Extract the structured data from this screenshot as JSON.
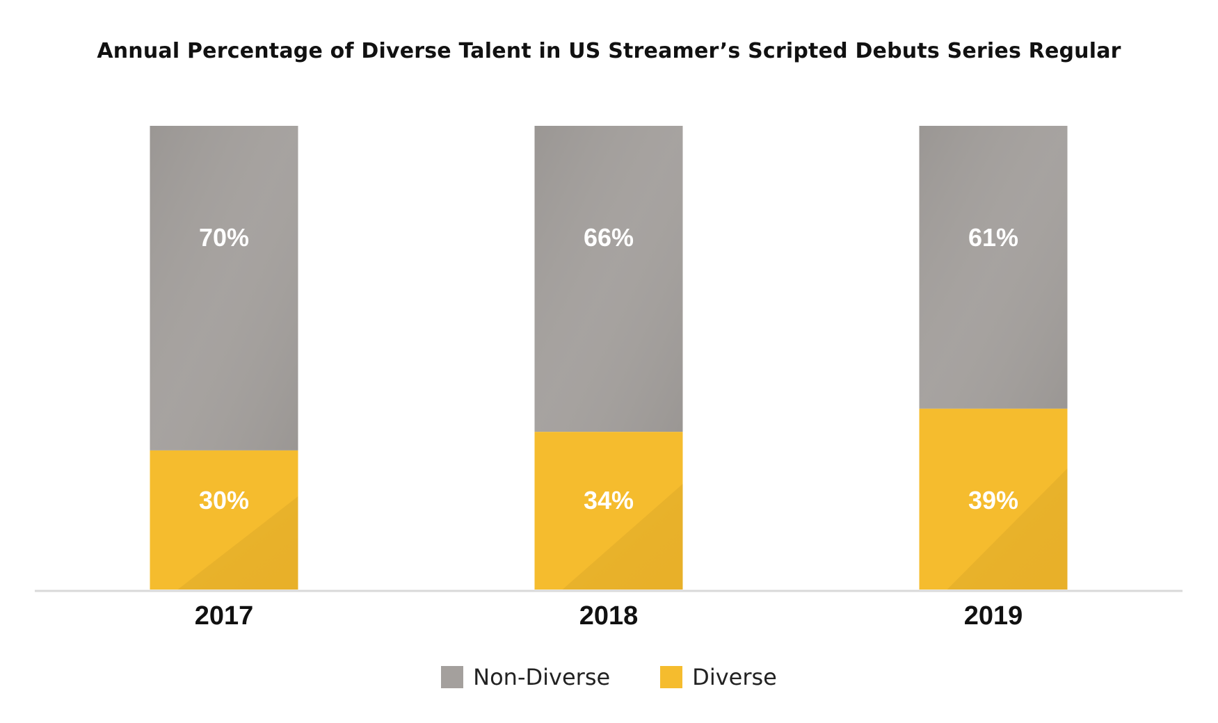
{
  "chart_data": {
    "type": "bar",
    "stacked": true,
    "percent_stacked": true,
    "title": "Annual Percentage of Diverse Talent in US Streamer’s Scripted Debuts Series Regular",
    "categories": [
      "2017",
      "2018",
      "2019"
    ],
    "series": [
      {
        "name": "Diverse",
        "values": [
          30,
          34,
          39
        ],
        "labels": [
          "30%",
          "34%",
          "39%"
        ],
        "color": "#F5BC2E"
      },
      {
        "name": "Non-Diverse",
        "values": [
          70,
          66,
          61
        ],
        "labels": [
          "70%",
          "66%",
          "61%"
        ],
        "color": "#A4A09D"
      }
    ],
    "ylim": [
      0,
      100
    ],
    "grid": false,
    "legend": {
      "position": "bottom",
      "order": [
        "Non-Diverse",
        "Diverse"
      ]
    },
    "baseline_color": "#D9D9D9"
  }
}
